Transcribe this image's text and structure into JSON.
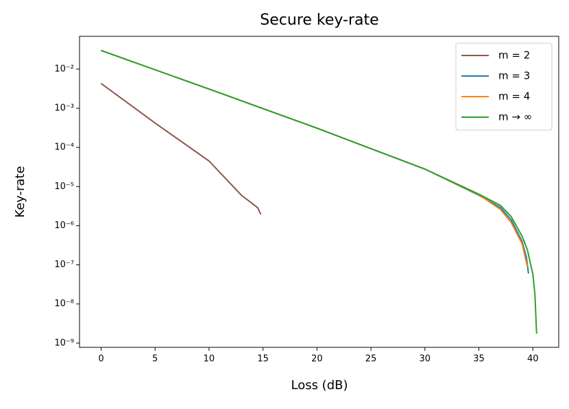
{
  "chart_data": {
    "type": "line",
    "title": "Secure key-rate",
    "x_label": "Loss (dB)",
    "y_label": "Key-rate",
    "log_y": true,
    "legend": "upper right",
    "xlim": [
      -2,
      42.4
    ],
    "xticks": [
      0,
      5,
      10,
      15,
      20,
      25,
      30,
      35,
      40
    ],
    "ylim": [
      7.8e-10,
      0.069
    ],
    "yticks": [
      {
        "value": 1e-09,
        "label": "10⁻⁹"
      },
      {
        "value": 1e-08,
        "label": "10⁻⁸"
      },
      {
        "value": 1e-07,
        "label": "10⁻⁷"
      },
      {
        "value": 1e-06,
        "label": "10⁻⁶"
      },
      {
        "value": 1e-05,
        "label": "10⁻⁵"
      },
      {
        "value": 0.0001,
        "label": "10⁻⁴"
      },
      {
        "value": 0.001,
        "label": "10⁻³"
      },
      {
        "value": 0.01,
        "label": "10⁻²"
      }
    ],
    "series": [
      {
        "name": "m = 2",
        "color": "#8c564b",
        "x": [
          0,
          5,
          10,
          13,
          14.5,
          14.8
        ],
        "values": [
          0.0043,
          0.00042,
          4.5e-05,
          6e-06,
          2.9e-06,
          1.95e-06
        ]
      },
      {
        "name": "m = 3",
        "color": "#1f77b4",
        "x": [
          0,
          10,
          20,
          30,
          35,
          37,
          38,
          39,
          39.4,
          39.6
        ],
        "values": [
          0.03,
          0.0031,
          0.00031,
          2.8e-05,
          6e-06,
          2.9e-06,
          1.4e-06,
          4e-07,
          1.6e-07,
          6e-08
        ]
      },
      {
        "name": "m = 4",
        "color": "#ff7f0e",
        "x": [
          0,
          10,
          20,
          30,
          35,
          37,
          38,
          39,
          39.5
        ],
        "values": [
          0.03,
          0.0031,
          0.00031,
          2.8e-05,
          6.2e-06,
          2.6e-06,
          1.2e-06,
          3.5e-07,
          9e-08
        ]
      },
      {
        "name": "m → ∞",
        "color": "#2ca02c",
        "x": [
          0,
          10,
          20,
          30,
          35,
          37,
          38,
          39,
          39.5,
          40,
          40.2,
          40.35
        ],
        "values": [
          0.03,
          0.0031,
          0.00031,
          2.8e-05,
          6.4e-06,
          3.3e-06,
          1.7e-06,
          5.4e-07,
          2.4e-07,
          5.9e-08,
          1.7e-08,
          1.75e-09
        ]
      }
    ]
  }
}
